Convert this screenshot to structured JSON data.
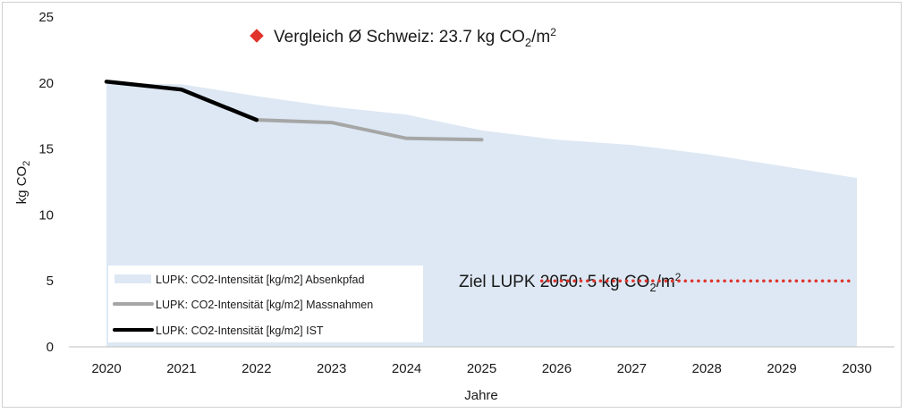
{
  "chart_data": {
    "type": "area",
    "xlabel": "Jahre",
    "ylabel": "kg CO",
    "ylabel_sub": "2",
    "x": [
      2020,
      2021,
      2022,
      2023,
      2024,
      2025,
      2026,
      2027,
      2028,
      2029,
      2030
    ],
    "ylim": [
      0,
      25
    ],
    "yticks": [
      0,
      5,
      10,
      15,
      20,
      25
    ],
    "grid": false,
    "series": [
      {
        "name": "LUPK: CO2-Intensität [kg/m2] Absenkpfad",
        "kind": "area",
        "color": "#dde8f4",
        "x": [
          2020,
          2021,
          2022,
          2023,
          2024,
          2025,
          2026,
          2027,
          2028,
          2029,
          2030
        ],
        "values": [
          20.0,
          19.9,
          19.0,
          18.2,
          17.6,
          16.4,
          15.7,
          15.3,
          14.6,
          13.7,
          12.8
        ]
      },
      {
        "name": "LUPK: CO2-Intensität [kg/m2] Massnahmen",
        "kind": "line",
        "color": "#a6a6a6",
        "x": [
          2022,
          2023,
          2024,
          2025
        ],
        "values": [
          17.2,
          17.0,
          15.8,
          15.7
        ]
      },
      {
        "name": "LUPK: CO2-Intensität [kg/m2] IST",
        "kind": "line",
        "color": "#000000",
        "x": [
          2020,
          2021,
          2022
        ],
        "values": [
          20.1,
          19.5,
          17.2
        ]
      }
    ],
    "legend": {
      "placement": "bottom-left"
    },
    "annotations": {
      "comparison": {
        "marker_color": "#e0332b",
        "text_main": "Vergleich Ø Schweiz: 23.7 kg CO",
        "text_sub": "2",
        "text_tail": "/m",
        "text_sup": "2"
      },
      "target": {
        "color": "#e0332b",
        "value": 5,
        "x_start": 2025.8,
        "x_end": 2030,
        "text_main": "Ziel LUPK 2050: 5 kg CO",
        "text_sub": "2",
        "text_tail": "/m",
        "text_sup": "2"
      }
    }
  }
}
